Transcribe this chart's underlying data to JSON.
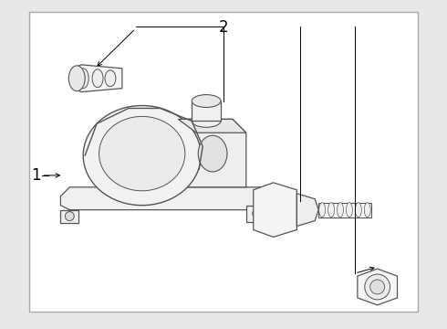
{
  "background_color": "#e8e8e8",
  "border_facecolor": "#ffffff",
  "border_edgecolor": "#999999",
  "part_edge_color": "#555555",
  "label_color": "#000000",
  "line_color": "#333333",
  "label_1": "1",
  "label_2": "2"
}
